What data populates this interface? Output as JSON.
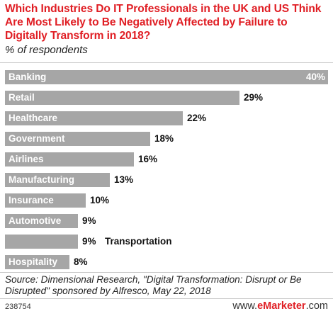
{
  "header": {
    "title": "Which Industries Do IT Professionals in the UK and US Think Are Most Likely to Be Negatively Affected by Failure to Digitally Transform in 2018?",
    "subtitle": "% of respondents"
  },
  "chart_data": {
    "type": "bar",
    "orientation": "horizontal",
    "title": "Which Industries Do IT Professionals in the UK and US Think Are Most Likely to Be Negatively Affected by Failure to Digitally Transform in 2018?",
    "subtitle": "% of respondents",
    "xlabel": "",
    "ylabel": "",
    "xlim": [
      0,
      40
    ],
    "grid": false,
    "legend": "none",
    "bar_color": "#a6a6a6",
    "categories": [
      "Banking",
      "Retail",
      "Healthcare",
      "Government",
      "Airlines",
      "Manufacturing",
      "Insurance",
      "Automotive",
      "Transportation",
      "Hospitality"
    ],
    "values": [
      40,
      29,
      22,
      18,
      16,
      13,
      10,
      9,
      9,
      8
    ],
    "value_labels": [
      "40%",
      "29%",
      "22%",
      "18%",
      "16%",
      "13%",
      "10%",
      "9%",
      "9%",
      "8%"
    ]
  },
  "footer": {
    "source": "Source: Dimensional Research, \"Digital Transformation: Disrupt or Be Disrupted\" sponsored by Alfresco, May 22, 2018",
    "chart_id": "238754",
    "brand_prefix": "www.",
    "brand_mark": "eMarketer",
    "brand_suffix": ".com"
  },
  "colors": {
    "title": "#e01e24",
    "bar": "#a6a6a6",
    "label_inside": "#ffffff",
    "label_outside": "#111111"
  }
}
